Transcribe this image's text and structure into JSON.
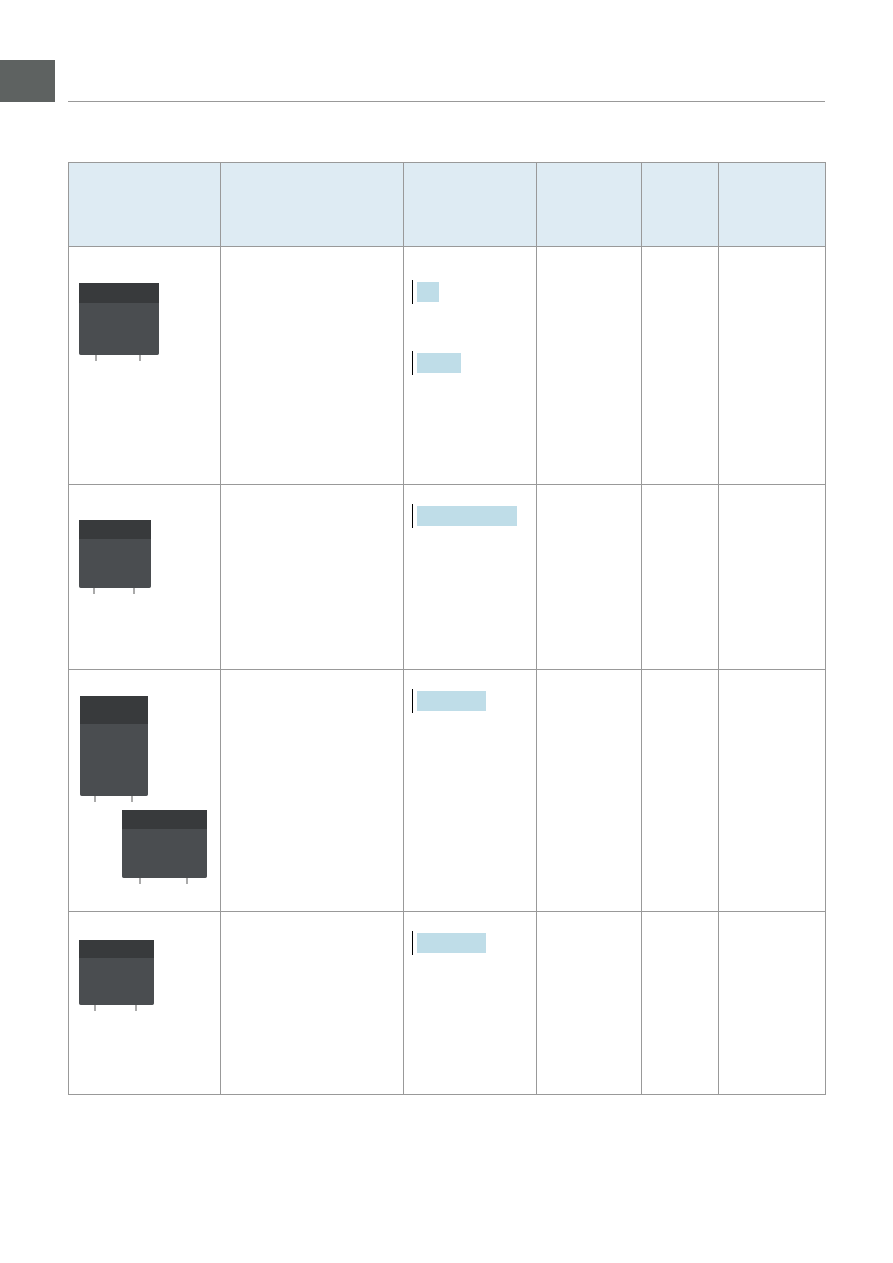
{
  "colors": {
    "section_tab": "#5e6261",
    "header_fill": "#deebf3",
    "highlight": "#bfdde8",
    "grid": "#999999",
    "relay_body": "#4a4d50"
  },
  "images": [
    {
      "name": "relay-image-1"
    },
    {
      "name": "relay-image-2"
    },
    {
      "name": "relay-image-3"
    },
    {
      "name": "relay-image-4"
    }
  ]
}
